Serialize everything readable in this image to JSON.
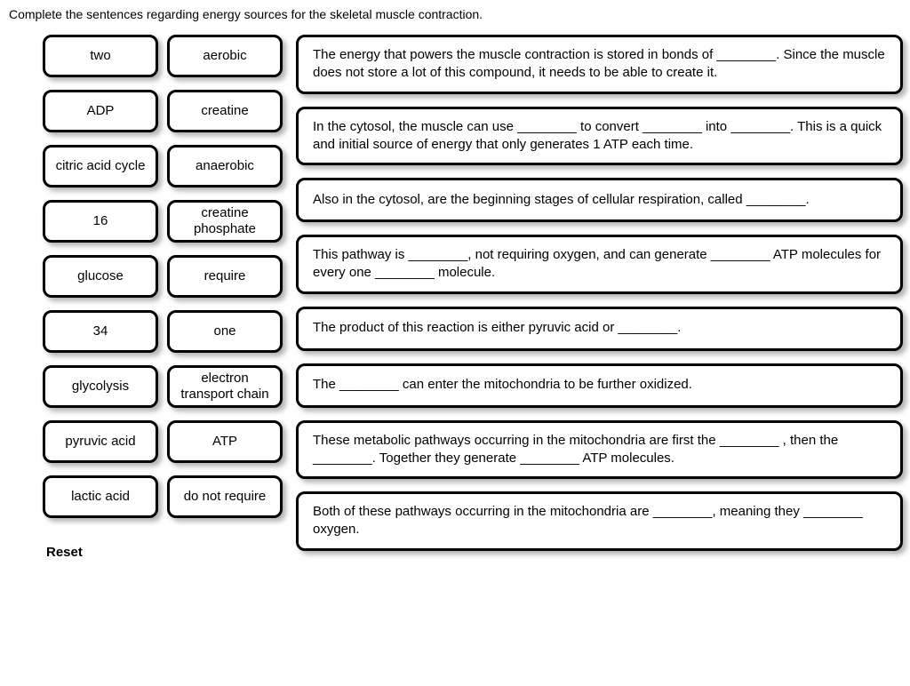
{
  "instruction": "Complete the sentences regarding energy sources for the skeletal muscle contraction.",
  "terms": {
    "rows": [
      [
        "two",
        "aerobic"
      ],
      [
        "ADP",
        "creatine"
      ],
      [
        "citric acid cycle",
        "anaerobic"
      ],
      [
        "16",
        "creatine phosphate"
      ],
      [
        "glucose",
        "require"
      ],
      [
        "34",
        "one"
      ],
      [
        "glycolysis",
        "electron transport chain"
      ],
      [
        "pyruvic acid",
        "ATP"
      ],
      [
        "lactic acid",
        "do not require"
      ]
    ]
  },
  "sentences": [
    "The energy that powers the muscle contraction is stored in bonds of ________. Since the muscle does not store a lot of this compound, it needs to be able to create it.",
    "In the cytosol, the muscle can use ________ to convert ________ into ________. This is a quick and initial source of energy that only generates 1 ATP each time.",
    "Also in the cytosol, are the beginning stages of cellular respiration, called ________.",
    "This pathway is ________, not requiring oxygen, and can generate ________ ATP molecules for every one ________ molecule.",
    "The product of this reaction is either pyruvic acid or ________.",
    "The ________ can enter the mitochondria to be further oxidized.",
    "These metabolic pathways occurring in the mitochondria are first the ________ , then the ________. Together they generate ________ ATP molecules.",
    "Both of these pathways occurring in the mitochondria are ________, meaning they ________ oxygen."
  ],
  "reset_label": "Reset",
  "styling": {
    "card_border_color": "#000000",
    "card_border_width": 3,
    "card_border_radius": 10,
    "card_background": "#ffffff",
    "shadow_color": "rgba(0,0,0,0.3)",
    "term_card_width": 130,
    "term_card_height": 48,
    "font_family": "Arial, sans-serif",
    "body_font_size": 15,
    "instruction_font_size": 14
  }
}
